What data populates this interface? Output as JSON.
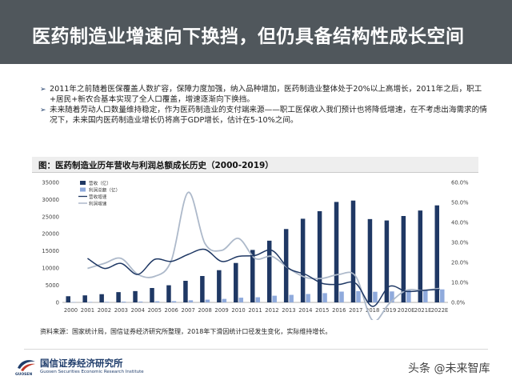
{
  "header": {
    "title": "医药制造业增速向下换挡，但仍具备结构性成长空间"
  },
  "bullets": [
    "2011年之前随着医保覆盖人数扩容，保障力度加强，纳入品种增加，医药制造业整体处于20%以上高增长，2011年之后，职工+居民+新农合基本实现了全人口覆盖，增速逐渐向下换挡。",
    "未来随着劳动人口数量维持稳定，作为医药制造业的支付端来源——职工医保收入我们预计也将降低增速，在不考虑出海需求的情况下，未来国内医药制造业增长仍将高于GDP增长，估计在5-10%之间。"
  ],
  "bullet_mark": "➢",
  "chart_title": "图：医药制造业历年营收与利润总额成长历史（2000-2019）",
  "source": "资料来源：国家统计局，国信证券经济研究所整理，2018年下滑因统计口径发生变化，实际维持增长。",
  "footer": {
    "org_cn": "国信证券经济研究所",
    "org_en": "Guosen Securities Economic Research Institute",
    "logo_text": "GUOSEN",
    "watermark": "头条 @未来智库"
  },
  "colors": {
    "revenue": "#1f3864",
    "profit": "#8faadc",
    "revenue_growth": "#1f3864",
    "profit_growth": "#adb9ca"
  },
  "chart_data": {
    "type": "bar",
    "title": "图：医药制造业历年营收与利润总额成长历史（2000-2019）",
    "categories": [
      "2000",
      "2001",
      "2002",
      "2003",
      "2004",
      "2005",
      "2006",
      "2007",
      "2008",
      "2009",
      "2010",
      "2011",
      "2012",
      "2013",
      "2014",
      "2015",
      "2016",
      "2017",
      "2018",
      "2019",
      "2020E",
      "2021E",
      "2022E"
    ],
    "series": [
      {
        "name": "营收（亿）",
        "kind": "bar",
        "axis": "left",
        "values": [
          1800,
          2050,
          2400,
          3000,
          3300,
          4200,
          5000,
          6300,
          7700,
          9400,
          11500,
          15300,
          18000,
          21400,
          24400,
          26600,
          29300,
          29700,
          24300,
          23900,
          25200,
          26800,
          28300
        ]
      },
      {
        "name": "利润总额（亿）",
        "kind": "bar",
        "axis": "left",
        "values": [
          120,
          140,
          170,
          230,
          250,
          330,
          370,
          610,
          800,
          1020,
          1380,
          1500,
          1950,
          2200,
          2450,
          2700,
          3150,
          3300,
          3100,
          3200,
          3500,
          3600,
          3800
        ]
      },
      {
        "name": "营收增速",
        "kind": "line",
        "axis": "right",
        "values": [
          null,
          22.0,
          17.0,
          19.5,
          14.0,
          21.5,
          20.5,
          24.0,
          26.5,
          20.5,
          23.0,
          23.5,
          26.0,
          17.0,
          14.0,
          9.5,
          9.0,
          9.5,
          -2.0,
          8.0,
          5.5,
          6.0,
          6.5
        ]
      },
      {
        "name": "利润增速",
        "kind": "line",
        "axis": "right",
        "values": [
          null,
          17.0,
          19.5,
          22.0,
          14.0,
          13.0,
          21.0,
          55.0,
          29.5,
          26.0,
          32.0,
          22.0,
          23.0,
          17.0,
          12.5,
          12.0,
          14.0,
          13.0,
          -9.0,
          -0.5,
          6.0,
          6.0,
          7.0
        ]
      }
    ],
    "y_left": {
      "min": 0,
      "max": 35000,
      "ticks": [
        0,
        5000,
        10000,
        15000,
        20000,
        25000,
        30000,
        35000
      ]
    },
    "y_right": {
      "min": 0,
      "max": 60,
      "ticks": [
        "0.0%",
        "10.0%",
        "20.0%",
        "30.0%",
        "40.0%",
        "50.0%",
        "60.0%"
      ]
    },
    "legend_position": "top-left",
    "grid": false
  }
}
